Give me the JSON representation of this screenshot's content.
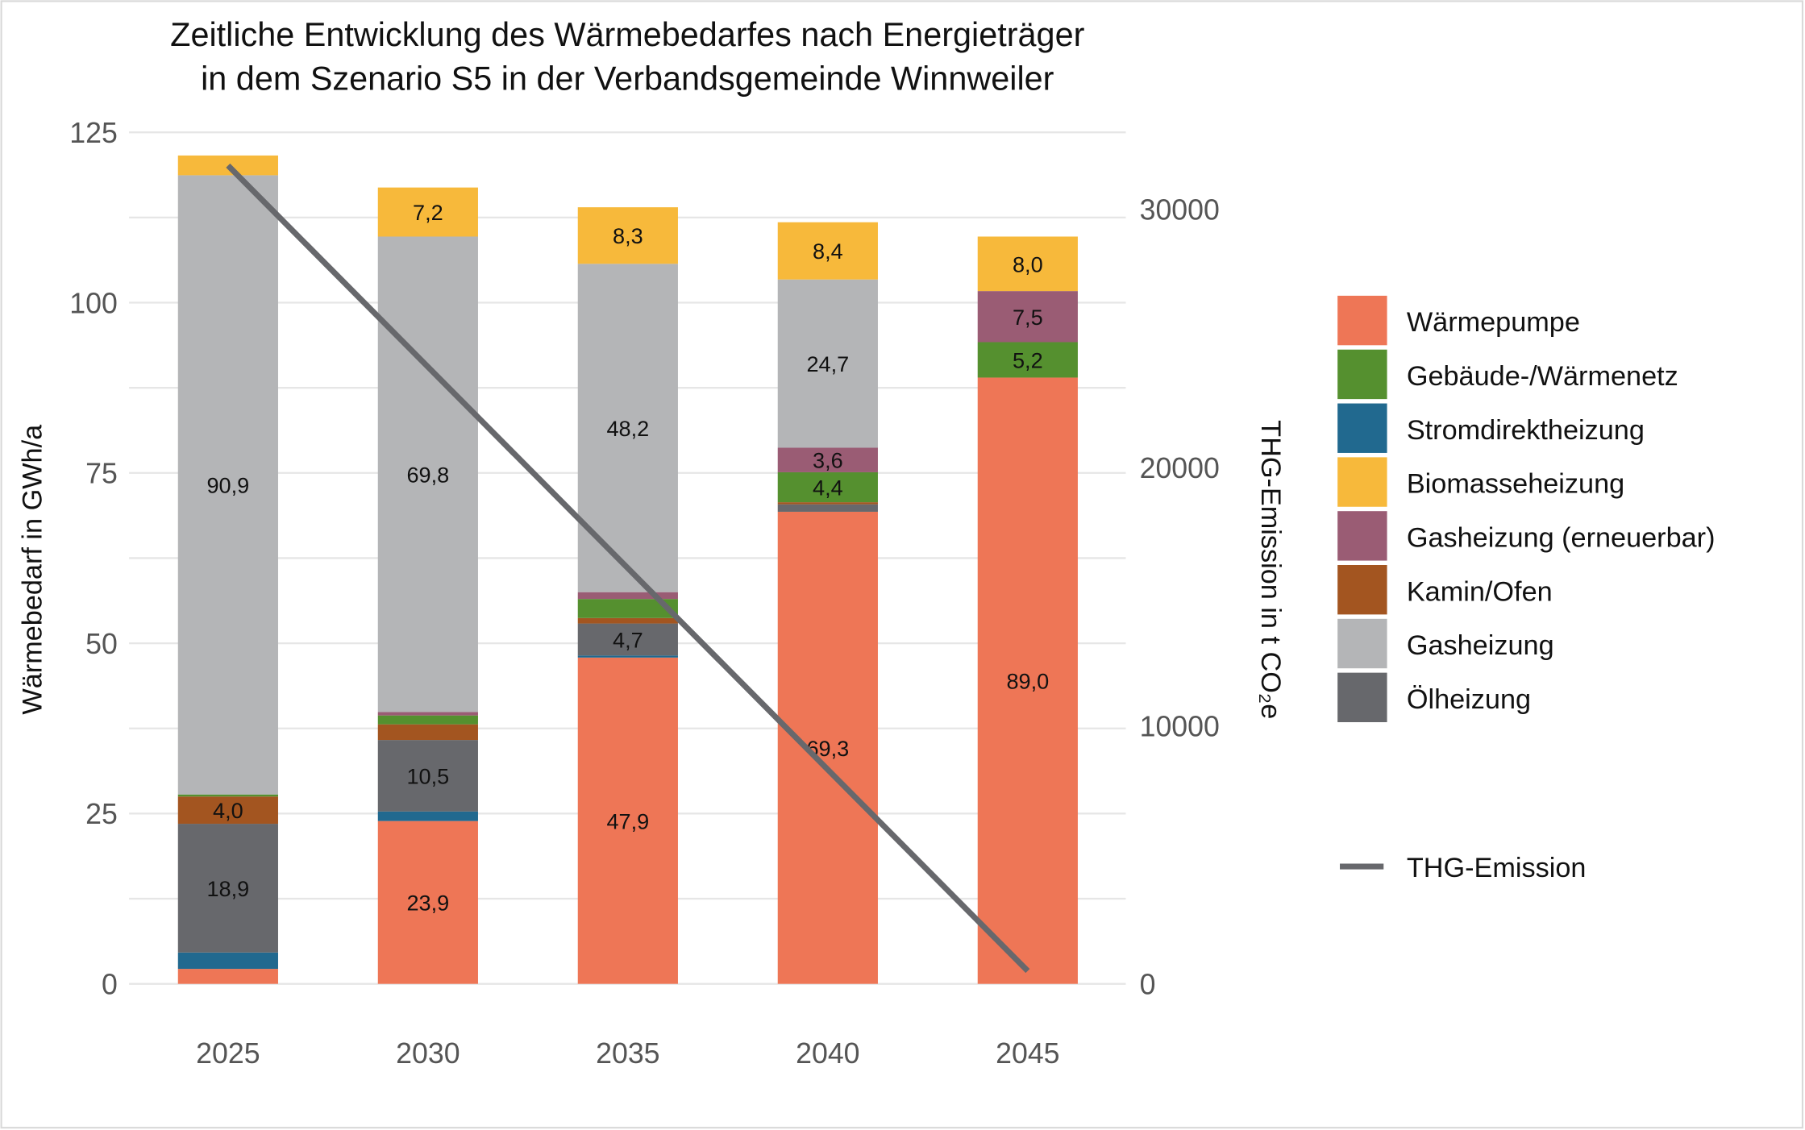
{
  "chart_data": {
    "type": "bar",
    "stacked": true,
    "title": [
      "Zeitliche Entwicklung des Wärmebedarfes nach Energieträger",
      "in dem Szenario S5 in der Verbandsgemeinde Winnweiler"
    ],
    "xlabel": "",
    "ylabel": "Wärmebedarf in GWh/a",
    "ylabel_right": "THG-Emission in t CO₂e",
    "ylim": [
      0,
      125
    ],
    "ylim_right": [
      0,
      32000
    ],
    "yticks": [
      "0",
      "25",
      "50",
      "75",
      "100",
      "125"
    ],
    "yticks_values": [
      0,
      25,
      50,
      75,
      100,
      125
    ],
    "yticks_right": [
      "0",
      "10000",
      "20000",
      "30000"
    ],
    "yticks_right_values": [
      0,
      10000,
      20000,
      30000
    ],
    "categories": [
      "2025",
      "2030",
      "2035",
      "2040",
      "2045"
    ],
    "grid": true,
    "legend_position": "right",
    "series": [
      {
        "name": "Wärmepumpe",
        "color": "#EE7656",
        "values": [
          2.2,
          23.9,
          47.9,
          69.3,
          89.0
        ],
        "labels": [
          "",
          "23,9",
          "47,9",
          "69,3",
          "89,0"
        ]
      },
      {
        "name": "Stromdirektheizung",
        "color": "#21698F",
        "values": [
          2.4,
          1.4,
          0.3,
          0,
          0
        ],
        "labels": [
          "",
          "",
          "",
          "",
          ""
        ]
      },
      {
        "name": "Ölheizung",
        "color": "#67686C",
        "values": [
          18.9,
          10.5,
          4.7,
          1.1,
          0
        ],
        "labels": [
          "18,9",
          "10,5",
          "4,7",
          "",
          ""
        ]
      },
      {
        "name": "Kamin/Ofen",
        "color": "#A35520",
        "values": [
          4.0,
          2.3,
          0.8,
          0.3,
          0
        ],
        "labels": [
          "4,0",
          "",
          "",
          "",
          ""
        ]
      },
      {
        "name": "Gebäude-/Wärmenetz",
        "color": "#55902F",
        "values": [
          0.3,
          1.3,
          2.8,
          4.4,
          5.2
        ],
        "labels": [
          "",
          "",
          "",
          "4,4",
          "5,2"
        ]
      },
      {
        "name": "Gasheizung (erneuerbar)",
        "color": "#9A5C74",
        "values": [
          0,
          0.5,
          1.0,
          3.6,
          7.5
        ],
        "labels": [
          "",
          "",
          "",
          "3,6",
          "7,5"
        ]
      },
      {
        "name": "Gasheizung",
        "color": "#B4B5B7",
        "values": [
          90.9,
          69.8,
          48.2,
          24.7,
          0
        ],
        "labels": [
          "90,9",
          "69,8",
          "48,2",
          "24,7",
          ""
        ]
      },
      {
        "name": "Biomasseheizung",
        "color": "#F7B93B",
        "values": [
          2.9,
          7.2,
          8.3,
          8.4,
          8.0
        ],
        "labels": [
          "",
          "7,2",
          "8,3",
          "8,4",
          "8,0"
        ]
      }
    ],
    "legend_order": [
      "Wärmepumpe",
      "Gebäude-/Wärmenetz",
      "Stromdirektheizung",
      "Biomasseheizung",
      "Gasheizung (erneuerbar)",
      "Kamin/Ofen",
      "Gasheizung",
      "Ölheizung"
    ],
    "line": {
      "name": "THG-Emission",
      "color": "#67686C",
      "axis": "right",
      "values": [
        31700,
        23900,
        16100,
        8300,
        500
      ]
    }
  }
}
